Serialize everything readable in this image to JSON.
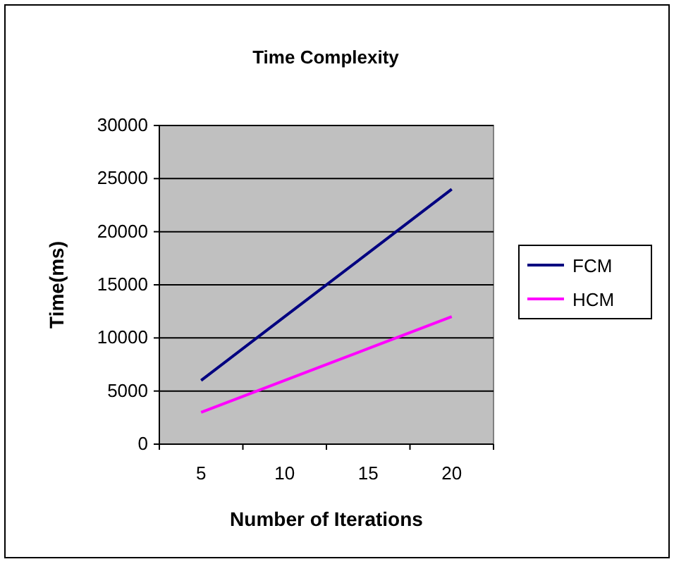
{
  "chart_data": {
    "type": "line",
    "title": "Time Complexity",
    "xlabel": "Number of Iterations",
    "ylabel": "Time(ms)",
    "categories": [
      "5",
      "10",
      "15",
      "20"
    ],
    "series": [
      {
        "name": "FCM",
        "color": "#000080",
        "values": [
          6000,
          12000,
          18000,
          24000
        ]
      },
      {
        "name": "HCM",
        "color": "#ff00ff",
        "values": [
          3000,
          6000,
          9000,
          12000
        ]
      }
    ],
    "ylim": [
      0,
      30000
    ],
    "yticks": [
      0,
      5000,
      10000,
      15000,
      20000,
      25000,
      30000
    ],
    "grid": "y",
    "legend": "right",
    "marker": "none",
    "line_style": "solid"
  }
}
